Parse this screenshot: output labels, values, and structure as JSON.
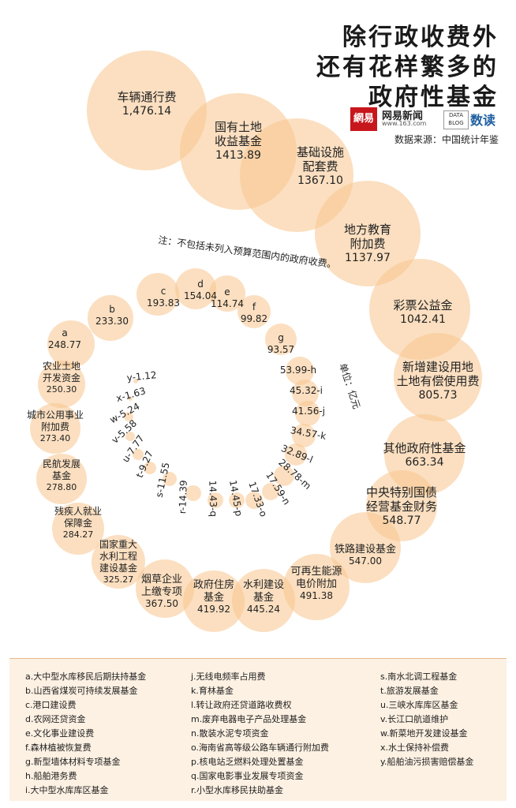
{
  "header": {
    "title_line1": "除行政收费外",
    "title_line2": "还有花样繁多的",
    "title_line3": "政府性基金",
    "brand_logo": "網易",
    "brand_name": "网易新闻",
    "brand_url": "www.163.com",
    "datablog_badge": "DATA BLOG",
    "datablog_name": "数读",
    "source": "数据来源：中国统计年鉴",
    "brand_color": "#c8161d"
  },
  "chart_data": {
    "type": "bubble-spiral",
    "note": "注：不包括未列入预算范围内的政府收费。",
    "unit": "单位：亿元",
    "bubble_color": "#f8c48d",
    "large_items": [
      {
        "label": "车辆通行费",
        "value": 1476.14,
        "value_text": "1,476.14"
      },
      {
        "label": "国有土地\n收益基金",
        "value": 1413.89,
        "value_text": "1413.89"
      },
      {
        "label": "基础设施\n配套费",
        "value": 1367.1,
        "value_text": "1367.10"
      },
      {
        "label": "地方教育\n附加费",
        "value": 1137.97,
        "value_text": "1137.97"
      },
      {
        "label": "彩票公益金",
        "value": 1042.41,
        "value_text": "1042.41"
      },
      {
        "label": "新增建设用地\n土地有偿使用费",
        "value": 805.73,
        "value_text": "805.73"
      },
      {
        "label": "其他政府性基金",
        "value": 663.34,
        "value_text": "663.34"
      },
      {
        "label": "中央特别国债\n经营基金财务",
        "value": 548.77,
        "value_text": "548.77"
      },
      {
        "label": "铁路建设基金",
        "value": 547.0,
        "value_text": "547.00"
      },
      {
        "label": "可再生能源\n电价附加",
        "value": 491.38,
        "value_text": "491.38"
      },
      {
        "label": "水利建设\n基金",
        "value": 445.24,
        "value_text": "445.24"
      },
      {
        "label": "政府住房\n基金",
        "value": 419.92,
        "value_text": "419.92"
      },
      {
        "label": "烟草企业\n上缴专项",
        "value": 367.5,
        "value_text": "367.50"
      },
      {
        "label": "国家重大\n水利工程\n建设基金",
        "value": 325.27,
        "value_text": "325.27"
      },
      {
        "label": "残疾人就业\n保障金",
        "value": 284.27,
        "value_text": "284.27"
      },
      {
        "label": "民航发展\n基金",
        "value": 278.8,
        "value_text": "278.80"
      },
      {
        "label": "城市公用事业\n附加费",
        "value": 273.4,
        "value_text": "273.40"
      },
      {
        "label": "农业土地\n开发资金",
        "value": 250.3,
        "value_text": "250.30"
      }
    ],
    "letter_items": [
      {
        "key": "a",
        "value": 248.77,
        "name": "大中型水库移民后期扶持基金"
      },
      {
        "key": "b",
        "value": 233.3,
        "name": "山西省煤炭可持续发展基金"
      },
      {
        "key": "c",
        "value": 193.83,
        "name": "港口建设费"
      },
      {
        "key": "d",
        "value": 154.04,
        "name": "农网还贷资金"
      },
      {
        "key": "e",
        "value": 114.74,
        "name": "文化事业建设费"
      },
      {
        "key": "f",
        "value": 99.82,
        "name": "森林植被恢复费"
      },
      {
        "key": "g",
        "value": 93.57,
        "name": "新型墙体材料专项基金"
      },
      {
        "key": "h",
        "value": 53.99,
        "name": "船舶港务费"
      },
      {
        "key": "i",
        "value": 45.32,
        "name": "大中型水库库区基金"
      },
      {
        "key": "j",
        "value": 41.56,
        "name": "无线电频率占用费"
      },
      {
        "key": "k",
        "value": 34.57,
        "name": "育林基金"
      },
      {
        "key": "l",
        "value": 32.89,
        "name": "转让政府还贷道路收费权"
      },
      {
        "key": "m",
        "value": 28.78,
        "name": "废弃电器电子产品处理基金"
      },
      {
        "key": "n",
        "value": 17.59,
        "name": "散装水泥专项资金"
      },
      {
        "key": "o",
        "value": 17.33,
        "name": "海南省高等级公路车辆通行附加费"
      },
      {
        "key": "p",
        "value": 14.45,
        "name": "核电站乏燃料处理处置基金"
      },
      {
        "key": "q",
        "value": 14.43,
        "name": "国家电影事业发展专项资金"
      },
      {
        "key": "r",
        "value": 14.39,
        "name": "小型水库移民扶助基金"
      },
      {
        "key": "s",
        "value": 11.55,
        "name": "南水北调工程基金"
      },
      {
        "key": "t",
        "value": 9.27,
        "name": "旅游发展基金"
      },
      {
        "key": "u",
        "value": 7.77,
        "name": "三峡水库库区基金"
      },
      {
        "key": "v",
        "value": 5.58,
        "name": "长江口航道维护"
      },
      {
        "key": "w",
        "value": 5.24,
        "name": "新菜地开发建设基金"
      },
      {
        "key": "x",
        "value": 1.63,
        "name": "水土保持补偿费"
      },
      {
        "key": "y",
        "value": 1.12,
        "name": "船舶油污损害赔偿基金"
      }
    ],
    "letter_labels": {
      "a": "a\n248.77",
      "b": "b\n233.30",
      "c": "c\n193.83",
      "d": "d\n154.04",
      "e": "e\n114.74",
      "f": "f\n99.82",
      "g": "g\n93.57",
      "h": "53.99-h",
      "i": "45.32-i",
      "j": "41.56-j",
      "k": "34.57-k",
      "l": "32.89-l",
      "m": "28.78-m",
      "n": "17.59-n",
      "o": "17.33-o",
      "p": "14.45-p",
      "q": "14.43-q",
      "r": "r-14.39",
      "s": "s-11.55",
      "t": "t-9.27",
      "u": "u-7.77",
      "v": "v-5.58",
      "w": "w-5.24",
      "x": "x-1.63",
      "y": "y-1.12"
    },
    "legend_entries": [
      "a.大中型水库移民后期扶持基金",
      "b.山西省煤炭可持续发展基金",
      "c.港口建设费",
      "d.农网还贷资金",
      "e.文化事业建设费",
      "f.森林植被恢复费",
      "g.新型墙体材料专项基金",
      "h.船舶港务费",
      "i.大中型水库库区基金",
      "j.无线电频率占用费",
      "k.育林基金",
      "l.转让政府还贷道路收费权",
      "m.废弃电器电子产品处理基金",
      "n.散装水泥专项资金",
      "o.海南省高等级公路车辆通行附加费",
      "p.核电站乏燃料处理处置基金",
      "q.国家电影事业发展专项资金",
      "r.小型水库移民扶助基金",
      "s.南水北调工程基金",
      "t.旅游发展基金",
      "u.三峡水库库区基金",
      "v.长江口航道维护",
      "w.新菜地开发建设基金",
      "x.水土保持补偿费",
      "y.船舶油污损害赔偿基金"
    ]
  }
}
